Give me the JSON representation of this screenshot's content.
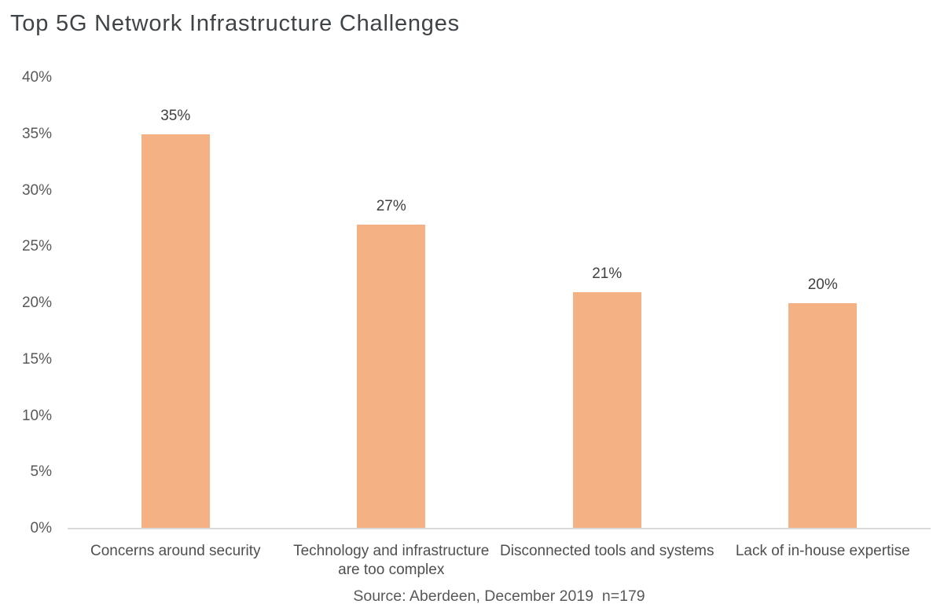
{
  "title": "Top 5G Network Infrastructure Challenges",
  "source_note": "Source: Aberdeen, December 2019  n=179",
  "colors": {
    "bar": "#F4B183",
    "title_text": "#3F4448",
    "axis_text": "#595959",
    "cat_text": "#4F4F4F",
    "data_label_text": "#404040",
    "axis_line": "#D9D9D9",
    "background": "#FFFFFF"
  },
  "chart_data": {
    "type": "bar",
    "title": "Top 5G Network Infrastructure Challenges",
    "categories": [
      "Concerns around security",
      "Technology and infrastructure are too complex",
      "Disconnected tools and systems",
      "Lack of in-house expertise"
    ],
    "category_lines": [
      [
        "Concerns around security"
      ],
      [
        "Technology and infrastructure",
        "are too complex"
      ],
      [
        "Disconnected tools and systems"
      ],
      [
        "Lack of in-house expertise"
      ]
    ],
    "values": [
      35,
      27,
      21,
      20
    ],
    "data_labels": [
      "35%",
      "27%",
      "21%",
      "20%"
    ],
    "y_ticks": [
      "40%",
      "35%",
      "30%",
      "25%",
      "20%",
      "15%",
      "10%",
      "5%",
      "0%"
    ],
    "y_tick_values": [
      40,
      35,
      30,
      25,
      20,
      15,
      10,
      5,
      0
    ],
    "xlabel": "",
    "ylabel": "",
    "ylim": [
      0,
      40
    ],
    "grid": false,
    "legend": false,
    "bar_color": "#F4B183",
    "source": "Source: Aberdeen, December 2019  n=179"
  }
}
